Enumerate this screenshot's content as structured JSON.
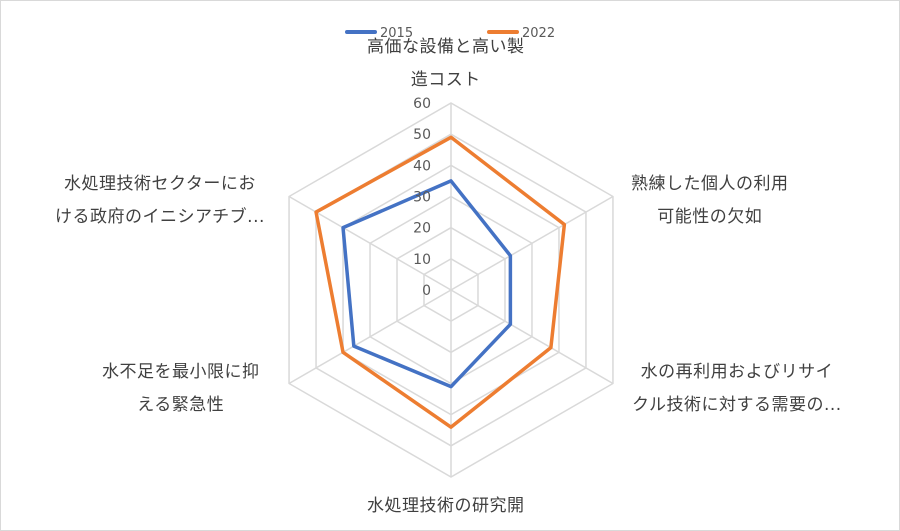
{
  "chart_data": {
    "type": "radar",
    "title": "",
    "categories": [
      [
        "高価な設備と高い製",
        "造コスト"
      ],
      [
        "熟練した個人の利用",
        "可能性の欠如"
      ],
      [
        "水の再利用およびリサイ",
        "クル技術に対する需要の..."
      ],
      [
        "水処理技術の研究開"
      ],
      [
        "水不足を最小限に抑",
        "える緊急性"
      ],
      [
        "水処理技術セクターにお",
        "ける政府のイニシアチブ..."
      ]
    ],
    "series": [
      {
        "name": "2015",
        "color": "#4472C4",
        "values": [
          35,
          22,
          22,
          31,
          36,
          40
        ]
      },
      {
        "name": "2022",
        "color": "#ED7D31",
        "values": [
          49,
          42,
          37,
          44,
          40,
          50
        ]
      }
    ],
    "rlim": [
      0,
      60
    ],
    "ticks": [
      "0",
      "10",
      "20",
      "30",
      "40",
      "50",
      "60"
    ],
    "legend_position": "top",
    "grid": true
  }
}
